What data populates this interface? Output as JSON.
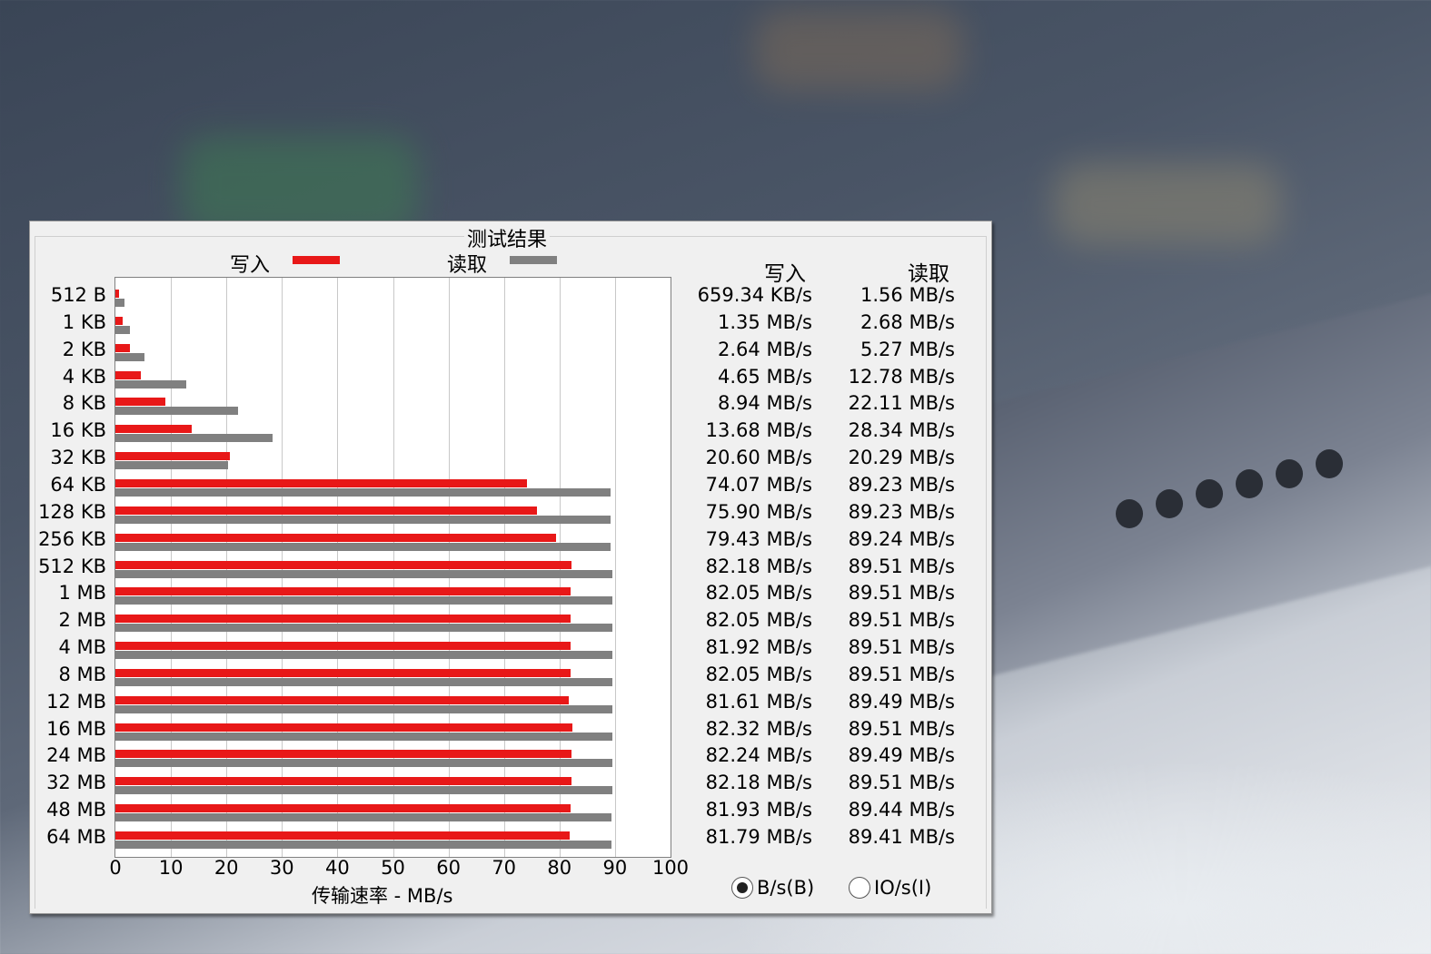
{
  "panel": {
    "title": "测试结果",
    "col_write": "写入",
    "col_read": "读取",
    "radio_bytes": "B/s(B)",
    "radio_io": "IO/s(I)",
    "radio_selected": "bytes"
  },
  "chart_data": {
    "type": "bar",
    "orientation": "horizontal",
    "title": "测试结果",
    "xlabel": "传输速率 - MB/s",
    "xlim": [
      0,
      100
    ],
    "xticks": [
      "0",
      "10",
      "20",
      "30",
      "40",
      "50",
      "60",
      "70",
      "80",
      "90",
      "100"
    ],
    "grid": true,
    "legend_position": "top",
    "categories": [
      "512 B",
      "1 KB",
      "2 KB",
      "4 KB",
      "8 KB",
      "16 KB",
      "32 KB",
      "64 KB",
      "128 KB",
      "256 KB",
      "512 KB",
      "1 MB",
      "2 MB",
      "4 MB",
      "8 MB",
      "12 MB",
      "16 MB",
      "24 MB",
      "32 MB",
      "48 MB",
      "64 MB"
    ],
    "series": [
      {
        "name": "写入",
        "color": "#e81818",
        "values": [
          0.64,
          1.35,
          2.64,
          4.65,
          8.94,
          13.68,
          20.6,
          74.07,
          75.9,
          79.43,
          82.18,
          82.05,
          82.05,
          81.92,
          82.05,
          81.61,
          82.32,
          82.24,
          82.18,
          81.93,
          81.79
        ],
        "labels": [
          "659.34 KB/s",
          "1.35 MB/s",
          "2.64 MB/s",
          "4.65 MB/s",
          "8.94 MB/s",
          "13.68 MB/s",
          "20.60 MB/s",
          "74.07 MB/s",
          "75.90 MB/s",
          "79.43 MB/s",
          "82.18 MB/s",
          "82.05 MB/s",
          "82.05 MB/s",
          "81.92 MB/s",
          "82.05 MB/s",
          "81.61 MB/s",
          "82.32 MB/s",
          "82.24 MB/s",
          "82.18 MB/s",
          "81.93 MB/s",
          "81.79 MB/s"
        ]
      },
      {
        "name": "读取",
        "color": "#808080",
        "values": [
          1.56,
          2.68,
          5.27,
          12.78,
          22.11,
          28.34,
          20.29,
          89.23,
          89.23,
          89.24,
          89.51,
          89.51,
          89.51,
          89.51,
          89.51,
          89.49,
          89.51,
          89.49,
          89.51,
          89.44,
          89.41
        ],
        "labels": [
          "1.56 MB/s",
          "2.68 MB/s",
          "5.27 MB/s",
          "12.78 MB/s",
          "22.11 MB/s",
          "28.34 MB/s",
          "20.29 MB/s",
          "89.23 MB/s",
          "89.23 MB/s",
          "89.24 MB/s",
          "89.51 MB/s",
          "89.51 MB/s",
          "89.51 MB/s",
          "89.51 MB/s",
          "89.51 MB/s",
          "89.49 MB/s",
          "89.51 MB/s",
          "89.49 MB/s",
          "89.51 MB/s",
          "89.44 MB/s",
          "89.41 MB/s"
        ]
      }
    ]
  }
}
